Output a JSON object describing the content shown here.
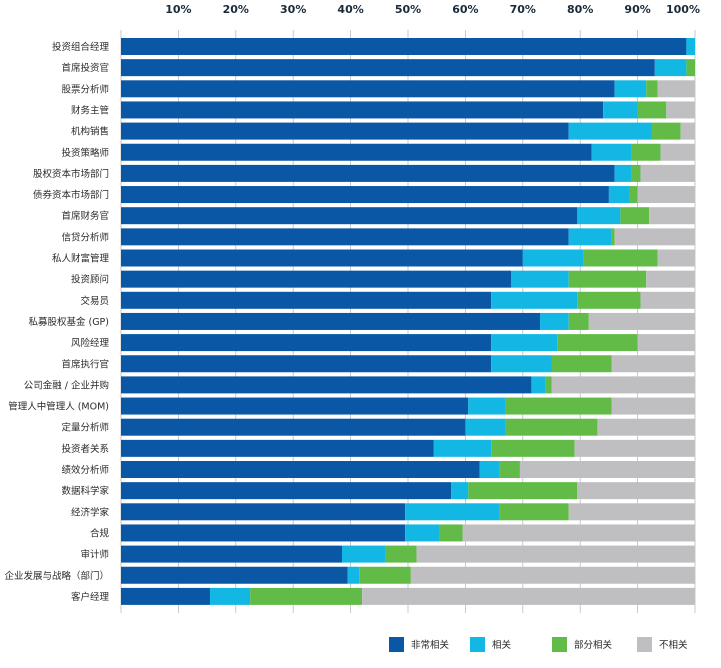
{
  "chart_data": {
    "type": "bar",
    "orientation": "horizontal",
    "stacked": true,
    "x_ticks": [
      "10%",
      "20%",
      "30%",
      "40%",
      "50%",
      "60%",
      "70%",
      "80%",
      "90%",
      "100%"
    ],
    "xlim": [
      0,
      100
    ],
    "grid": true,
    "legend_position": "bottom-right",
    "categories": [
      "投资组合经理",
      "首席投资官",
      "股票分析师",
      "财务主管",
      "机构销售",
      "投资策略师",
      "股权资本市场部门",
      "债券资本市场部门",
      "首席财务官",
      "信贷分析师",
      "私人财富管理",
      "投资顾问",
      "交易员",
      "私募股权基金 (GP)",
      "风险经理",
      "首席执行官",
      "公司金融 / 企业并购",
      "管理人中管理人 (MOM)",
      "定量分析师",
      "投资者关系",
      "绩效分析师",
      "数据科学家",
      "经济学家",
      "合规",
      "审计师",
      "企业发展与战略（部门）",
      "客户经理"
    ],
    "series": [
      {
        "name": "非常相关",
        "color": "#0a57a5",
        "values": [
          98.5,
          93,
          86,
          84,
          78,
          82,
          86,
          85,
          79.5,
          78,
          70,
          68,
          64.5,
          73,
          64.5,
          64.5,
          71.5,
          60.5,
          60,
          54.5,
          62.5,
          57.5,
          49.5,
          49.5,
          38.5,
          39.5,
          15.5
        ]
      },
      {
        "name": "相关",
        "color": "#12b7e4",
        "values": [
          1.5,
          5.5,
          5.5,
          6,
          14.5,
          7,
          3,
          3.5,
          7.5,
          7.5,
          10.5,
          10,
          15,
          5,
          11.5,
          10.5,
          2.5,
          6.5,
          7,
          10,
          3.5,
          3,
          16.5,
          6,
          7.5,
          2,
          7
        ]
      },
      {
        "name": "部分相关",
        "color": "#62bb46",
        "values": [
          0,
          1.5,
          2,
          5,
          5,
          5,
          1.5,
          1.5,
          5,
          0.5,
          13,
          13.5,
          11,
          3.5,
          14,
          10.5,
          1,
          18.5,
          16,
          14.5,
          3.5,
          19,
          12,
          4,
          5.5,
          9,
          19.5
        ]
      },
      {
        "name": "不相关",
        "color": "#bfbfc1",
        "values": [
          0,
          0,
          6.5,
          5,
          2.5,
          6,
          9.5,
          10,
          8,
          14,
          6.5,
          8.5,
          9.5,
          18.5,
          10,
          14.5,
          25,
          14.5,
          17,
          21,
          30.5,
          20.5,
          22,
          40.5,
          48.5,
          49.5,
          58
        ]
      }
    ]
  }
}
